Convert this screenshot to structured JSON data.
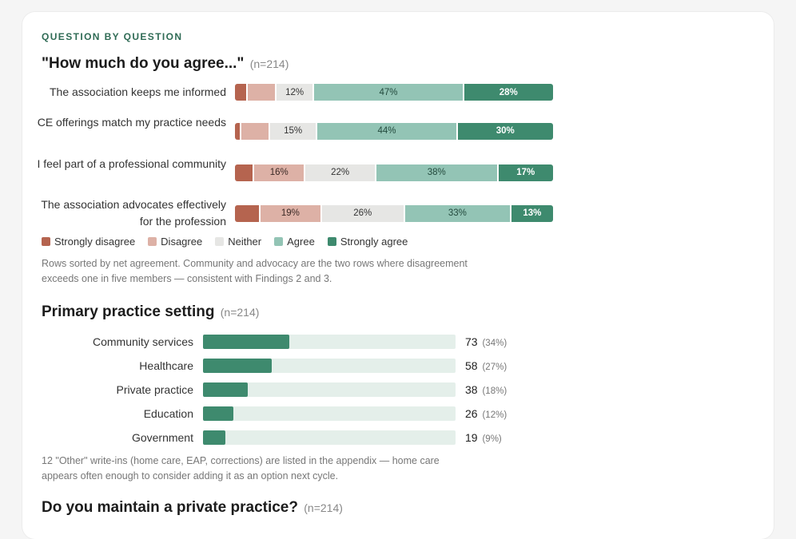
{
  "eyebrow": "QUESTION BY QUESTION",
  "colors": {
    "strongly_disagree": "#b5644f",
    "disagree": "#ddb1a6",
    "neither": "#e6e6e4",
    "agree": "#93c4b5",
    "strongly_agree": "#3e8a6e",
    "track": "#e4efea",
    "accent": "#2f6b55"
  },
  "chart_data": [
    {
      "type": "bar",
      "stacked": true,
      "orientation": "horizontal",
      "title": "\"How much do you agree...\"",
      "n_label": "(n=214)",
      "categories": [
        "The association keeps me informed",
        "CE offerings match my practice needs",
        "I feel part of a professional community",
        "The association advocates effectively for the profession"
      ],
      "series": [
        {
          "name": "Strongly disagree",
          "color": "#b5644f",
          "values": [
            4,
            2,
            6,
            8
          ],
          "labels": [
            "",
            "",
            "",
            ""
          ]
        },
        {
          "name": "Disagree",
          "color": "#ddb1a6",
          "values": [
            9,
            9,
            16,
            19
          ],
          "labels": [
            "",
            "",
            "16%",
            "19%"
          ]
        },
        {
          "name": "Neither",
          "color": "#e6e6e4",
          "values": [
            12,
            15,
            22,
            26
          ],
          "labels": [
            "12%",
            "15%",
            "22%",
            "26%"
          ]
        },
        {
          "name": "Agree",
          "color": "#93c4b5",
          "values": [
            47,
            44,
            38,
            33
          ],
          "labels": [
            "47%",
            "44%",
            "38%",
            "33%"
          ]
        },
        {
          "name": "Strongly agree",
          "color": "#3e8a6e",
          "values": [
            28,
            30,
            17,
            13
          ],
          "labels": [
            "28%",
            "30%",
            "17%",
            "13%"
          ]
        }
      ],
      "legend_position": "bottom-left",
      "note": "Rows sorted by net agreement. Community and advocacy are the two rows where disagreement exceeds one in five members — consistent with Findings 2 and 3."
    },
    {
      "type": "bar",
      "orientation": "horizontal",
      "title": "Primary practice setting",
      "n_label": "(n=214)",
      "categories": [
        "Community services",
        "Healthcare",
        "Private practice",
        "Education",
        "Government"
      ],
      "values": [
        73,
        58,
        38,
        26,
        19
      ],
      "value_labels": [
        "73",
        "58",
        "38",
        "26",
        "19"
      ],
      "percent_labels": [
        "(34%)",
        "(27%)",
        "(18%)",
        "(12%)",
        "(9%)"
      ],
      "xlim": [
        0,
        214
      ],
      "note": "12 \"Other\" write-ins (home care, EAP, corrections) are listed in the appendix — home care appears often enough to consider adding it as an option next cycle."
    }
  ],
  "next_section": {
    "title": "Do you maintain a private practice?",
    "n_label": "(n=214)"
  }
}
